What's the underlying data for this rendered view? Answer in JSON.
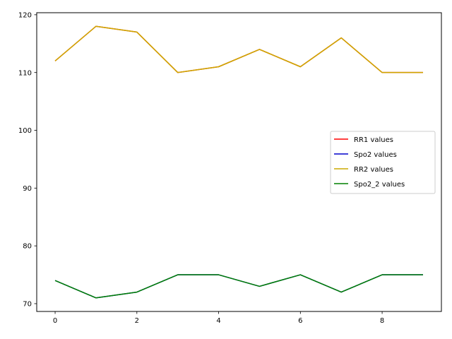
{
  "chart_data": {
    "type": "line",
    "title": "",
    "xlabel": "",
    "ylabel": "",
    "x": [
      0,
      1,
      2,
      3,
      4,
      5,
      6,
      7,
      8,
      9
    ],
    "xlim": [
      -0.45,
      9.45
    ],
    "ylim": [
      68.65,
      120.35
    ],
    "xticks": [
      0,
      2,
      4,
      6,
      8
    ],
    "yticks": [
      70,
      80,
      90,
      100,
      110,
      120
    ],
    "grid": false,
    "legend_position": "center-right",
    "series": [
      {
        "name": "RR1 values",
        "color": "#ff0000",
        "values": [
          112,
          118,
          117,
          110,
          111,
          114,
          111,
          116,
          110,
          110
        ]
      },
      {
        "name": "Spo2 values",
        "color": "#0000cc",
        "values": [
          74,
          71,
          72,
          75,
          75,
          73,
          75,
          72,
          75,
          75
        ]
      },
      {
        "name": "RR2 values",
        "color": "#ccaa00",
        "values": [
          112,
          118,
          117,
          110,
          111,
          114,
          111,
          116,
          110,
          110
        ]
      },
      {
        "name": "Spo2_2 values",
        "color": "#008000",
        "values": [
          74,
          71,
          72,
          75,
          75,
          73,
          75,
          72,
          75,
          75
        ]
      }
    ]
  }
}
